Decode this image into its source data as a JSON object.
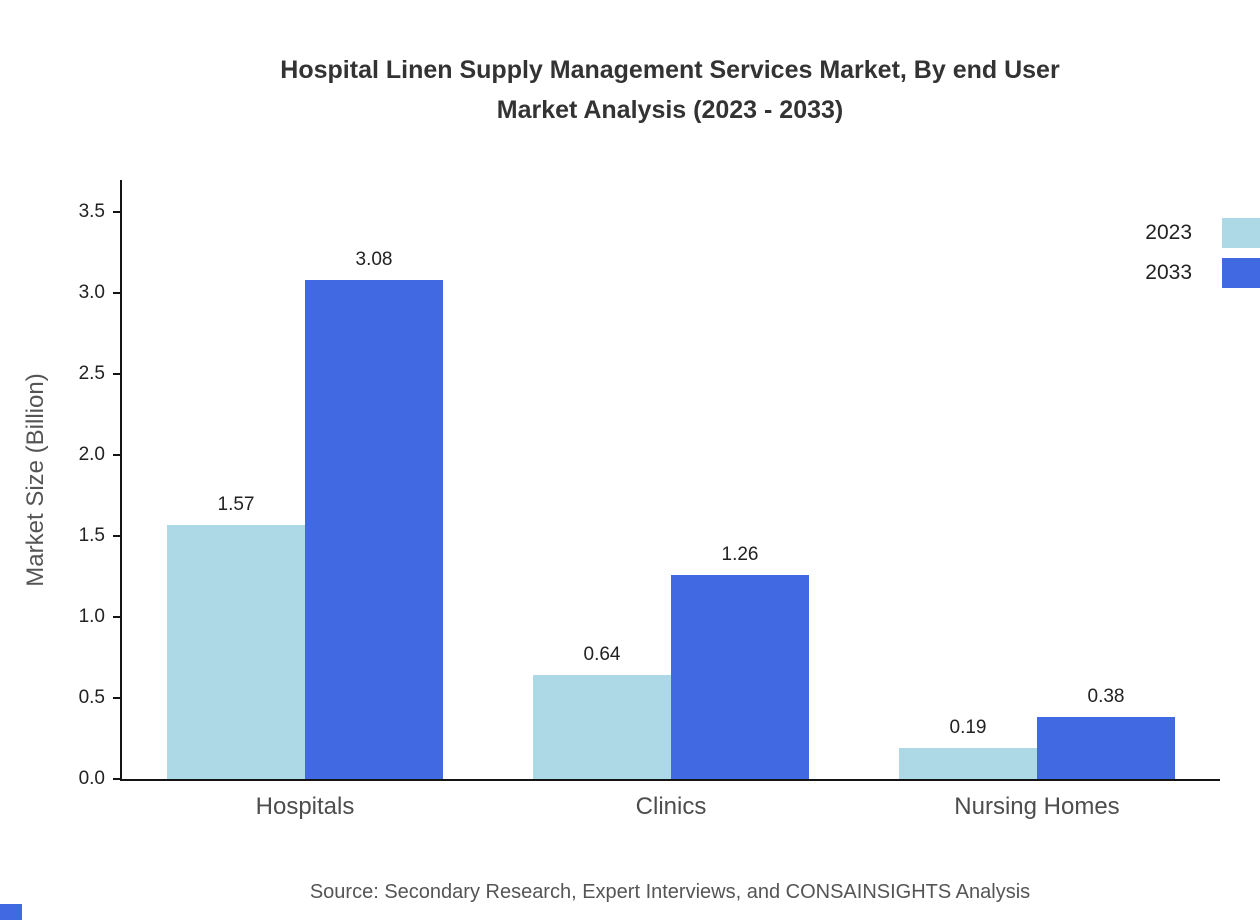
{
  "title": {
    "line1": "Hospital Linen Supply Management Services Market, By end User",
    "line2": "Market Analysis (2023 - 2033)"
  },
  "source": "Source: Secondary Research, Expert Interviews, and CONSAINSIGHTS Analysis",
  "colors": {
    "series_2023": "#ADD8E6",
    "series_2033": "#4169E1",
    "axis": "#141414",
    "corner_mark": "#4169E1"
  },
  "chart_data": {
    "type": "bar",
    "title": "Hospital Linen Supply Management Services Market, By end User Market Analysis (2023 - 2033)",
    "categories": [
      "Hospitals",
      "Clinics",
      "Nursing Homes"
    ],
    "series": [
      {
        "name": "2023",
        "color": "#ADD8E6",
        "values": [
          1.57,
          0.64,
          0.19
        ]
      },
      {
        "name": "2033",
        "color": "#4169E1",
        "values": [
          3.08,
          1.26,
          0.38
        ]
      }
    ],
    "xlabel": "",
    "ylabel": "Market Size (Billion)",
    "ylim": [
      0,
      3.7
    ],
    "yticks": [
      0.0,
      0.5,
      1.0,
      1.5,
      2.0,
      2.5,
      3.0,
      3.5
    ],
    "grid": false,
    "legend_position": "top-right",
    "value_label_decimals": 2
  }
}
